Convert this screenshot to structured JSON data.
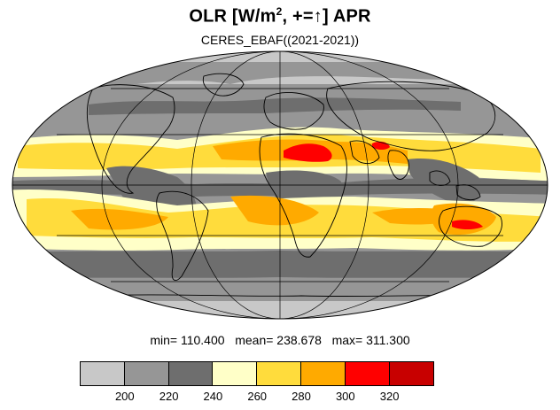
{
  "title": {
    "prefix": "OLR [W/m",
    "superscript": "2",
    "suffix": ", +=↑] APR"
  },
  "subtitle": "CERES_EBAF((2021-2021))",
  "stats": {
    "text": "min= 110.400   mean= 238.678   max= 311.300",
    "min": 110.4,
    "mean": 238.678,
    "max": 311.3
  },
  "colorbar": {
    "colors": [
      "#c8c8c8",
      "#969696",
      "#6e6e6e",
      "#ffffc8",
      "#ffdc3c",
      "#ffaa00",
      "#ff0000",
      "#c80000"
    ],
    "labels": [
      "200",
      "220",
      "240",
      "260",
      "280",
      "300",
      "320"
    ]
  },
  "map": {
    "projection": "Mollweide",
    "palette": {
      "c200": "#c8c8c8",
      "c220": "#969696",
      "c240": "#6e6e6e",
      "c260": "#ffffc8",
      "c280": "#ffdc3c",
      "c300": "#ffaa00",
      "c320": "#ff0000"
    }
  }
}
